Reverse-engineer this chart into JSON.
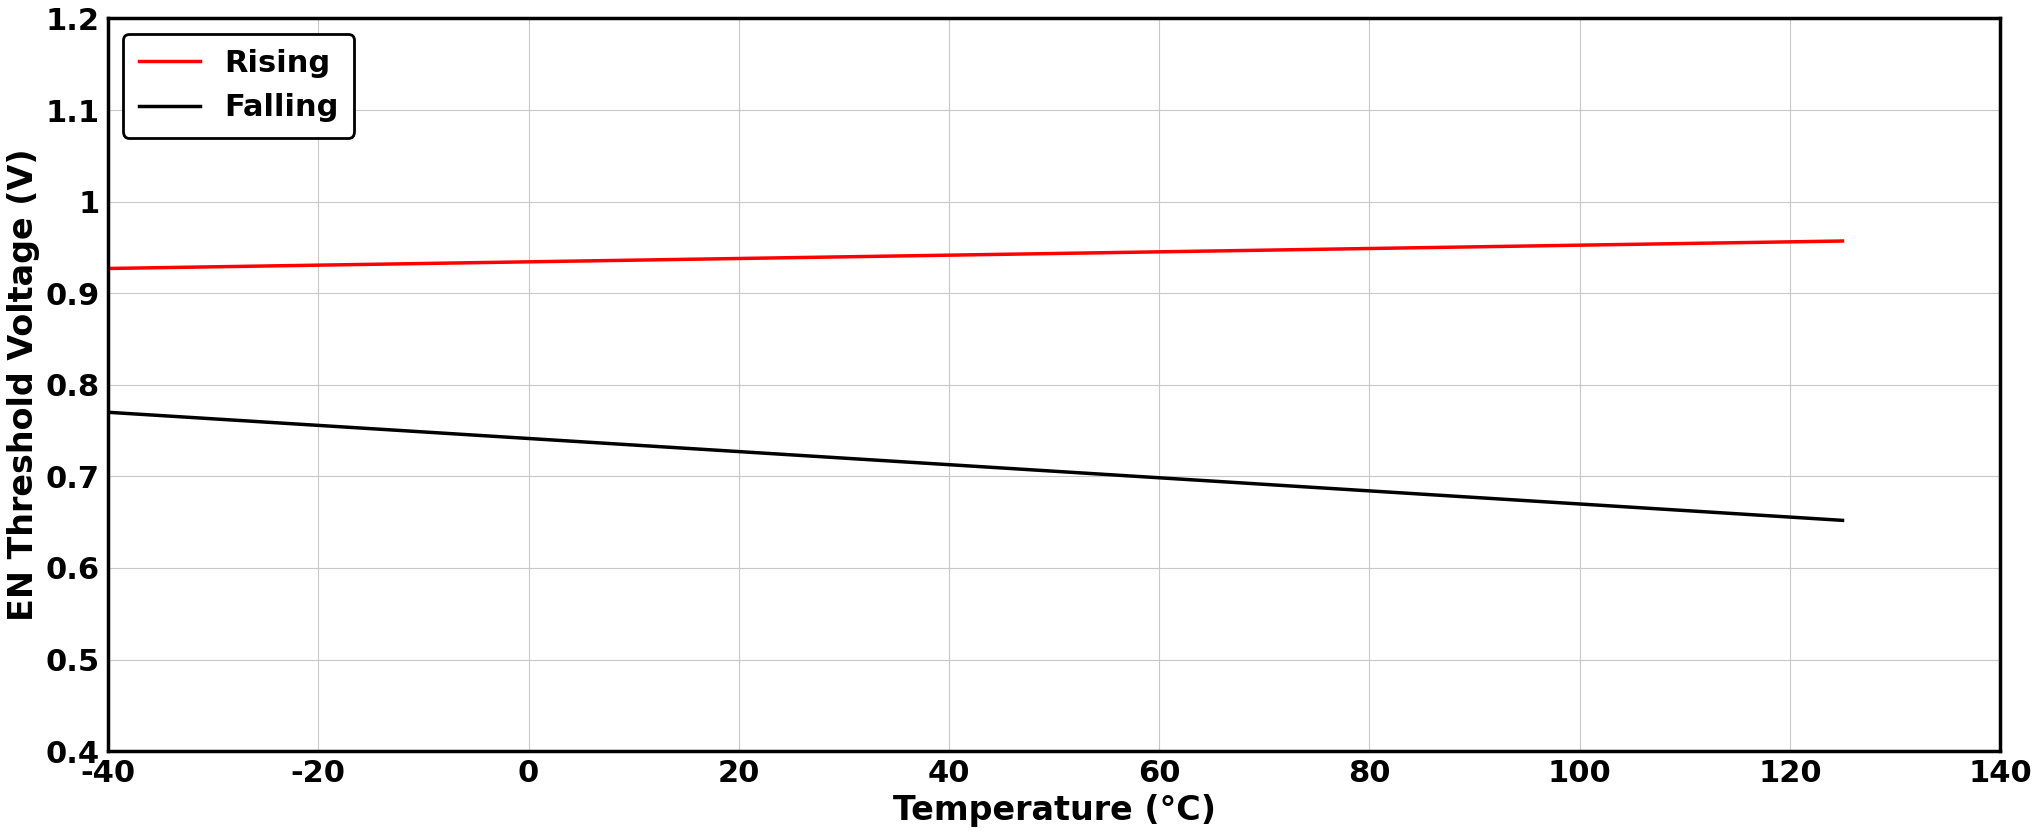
{
  "title": "",
  "xlabel": "Temperature (°C)",
  "ylabel": "EN Threshold Voltage (V)",
  "xlim": [
    -40,
    140
  ],
  "ylim": [
    0.4,
    1.2
  ],
  "xticks": [
    -40,
    -20,
    0,
    20,
    40,
    60,
    80,
    100,
    120,
    140
  ],
  "yticks": [
    0.4,
    0.5,
    0.6,
    0.7,
    0.8,
    0.9,
    1.0,
    1.1,
    1.2
  ],
  "rising": {
    "x": [
      -40,
      125
    ],
    "y": [
      0.927,
      0.957
    ],
    "color": "#ff0000",
    "label": "Rising",
    "linewidth": 2.5
  },
  "falling": {
    "x": [
      -40,
      125
    ],
    "y": [
      0.77,
      0.652
    ],
    "color": "#000000",
    "label": "Falling",
    "linewidth": 2.5
  },
  "legend_loc": "upper left",
  "legend_fontsize": 22,
  "axis_fontsize": 24,
  "tick_fontsize": 22,
  "grid_color": "#c8c8c8",
  "background_color": "#ffffff",
  "spine_linewidth": 2.5,
  "tick_label_fontweight": "bold",
  "axis_label_fontweight": "bold"
}
